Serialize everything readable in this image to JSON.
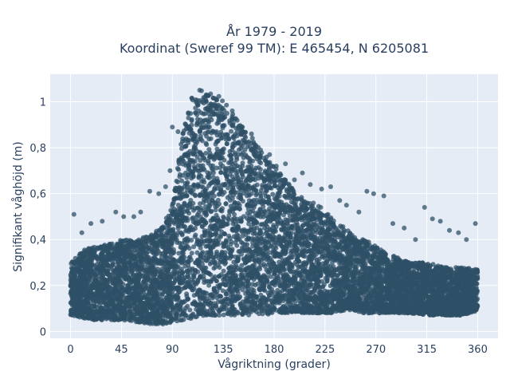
{
  "chart_data": {
    "type": "scatter",
    "title_lines": [
      "År 1979 - 2019",
      "Koordinat (Sweref 99 TM): E 465454, N 6205081"
    ],
    "xlabel": "Vågriktning (grader)",
    "ylabel": "Signifikant våghöjd (m)",
    "xlim": [
      -18,
      378
    ],
    "ylim": [
      -0.03,
      1.12
    ],
    "x_ticks": [
      0,
      45,
      90,
      135,
      180,
      225,
      270,
      315,
      360
    ],
    "x_tick_labels": [
      "0",
      "45",
      "90",
      "135",
      "180",
      "225",
      "270",
      "315",
      "360"
    ],
    "y_ticks": [
      0,
      0.2,
      0.4,
      0.6,
      0.8,
      1.0
    ],
    "y_tick_labels": [
      "0",
      "0,2",
      "0,4",
      "0,6",
      "0,8",
      "1"
    ],
    "marker_color": "#2f5067",
    "marker_opacity": 0.75,
    "plot_background": "#e5ecf6",
    "grid": true,
    "envelope": {
      "x": [
        0,
        10,
        20,
        30,
        45,
        60,
        70,
        80,
        90,
        100,
        110,
        120,
        130,
        140,
        150,
        160,
        170,
        180,
        190,
        200,
        210,
        220,
        230,
        240,
        250,
        260,
        270,
        280,
        290,
        300,
        315,
        330,
        345,
        360
      ],
      "y_min": [
        0.07,
        0.06,
        0.05,
        0.05,
        0.05,
        0.04,
        0.03,
        0.03,
        0.04,
        0.05,
        0.06,
        0.07,
        0.07,
        0.07,
        0.07,
        0.07,
        0.07,
        0.08,
        0.08,
        0.08,
        0.08,
        0.08,
        0.08,
        0.09,
        0.09,
        0.08,
        0.08,
        0.08,
        0.08,
        0.08,
        0.07,
        0.07,
        0.07,
        0.09
      ],
      "y_max": [
        0.3,
        0.35,
        0.37,
        0.38,
        0.4,
        0.4,
        0.42,
        0.45,
        0.55,
        0.9,
        1.06,
        1.04,
        1.03,
        0.98,
        0.92,
        0.85,
        0.78,
        0.72,
        0.66,
        0.6,
        0.57,
        0.55,
        0.5,
        0.46,
        0.42,
        0.4,
        0.37,
        0.34,
        0.32,
        0.3,
        0.3,
        0.28,
        0.28,
        0.27
      ]
    },
    "outliers": [
      [
        3,
        0.51
      ],
      [
        10,
        0.43
      ],
      [
        18,
        0.47
      ],
      [
        28,
        0.48
      ],
      [
        40,
        0.52
      ],
      [
        47,
        0.5
      ],
      [
        56,
        0.5
      ],
      [
        62,
        0.52
      ],
      [
        70,
        0.61
      ],
      [
        78,
        0.6
      ],
      [
        84,
        0.63
      ],
      [
        88,
        0.7
      ],
      [
        90,
        0.89
      ],
      [
        95,
        0.87
      ],
      [
        160,
        0.86
      ],
      [
        168,
        0.79
      ],
      [
        176,
        0.77
      ],
      [
        182,
        0.72
      ],
      [
        190,
        0.73
      ],
      [
        198,
        0.66
      ],
      [
        205,
        0.69
      ],
      [
        212,
        0.64
      ],
      [
        222,
        0.62
      ],
      [
        230,
        0.63
      ],
      [
        238,
        0.57
      ],
      [
        244,
        0.55
      ],
      [
        255,
        0.52
      ],
      [
        262,
        0.61
      ],
      [
        268,
        0.6
      ],
      [
        277,
        0.59
      ],
      [
        285,
        0.47
      ],
      [
        295,
        0.45
      ],
      [
        305,
        0.4
      ],
      [
        313,
        0.54
      ],
      [
        320,
        0.49
      ],
      [
        327,
        0.48
      ],
      [
        335,
        0.44
      ],
      [
        343,
        0.43
      ],
      [
        350,
        0.4
      ],
      [
        358,
        0.47
      ]
    ]
  }
}
